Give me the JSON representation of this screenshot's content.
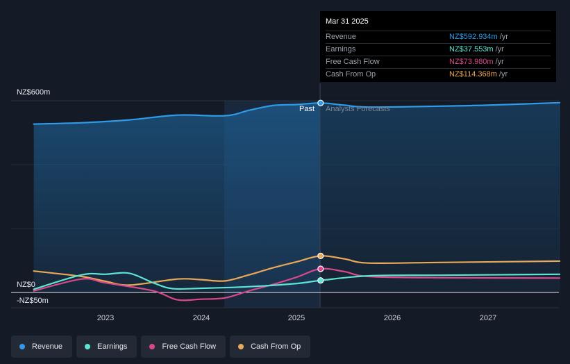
{
  "chart_data": {
    "type": "line",
    "currency": "NZ$",
    "y_tick_labels": [
      "NZ$600m",
      "NZ$0",
      "-NZ$50m"
    ],
    "ylim": [
      -50,
      600
    ],
    "x_tick_labels": [
      "2023",
      "2024",
      "2025",
      "2026",
      "2027"
    ],
    "past_label": "Past",
    "forecast_label": "Analysts Forecasts",
    "divider_date": 2025.25,
    "series": [
      {
        "name": "Revenue",
        "color": "#2f9be9",
        "points": [
          [
            2022.25,
            527
          ],
          [
            2022.75,
            531
          ],
          [
            2023.25,
            540
          ],
          [
            2023.75,
            555
          ],
          [
            2024.25,
            553
          ],
          [
            2024.5,
            570
          ],
          [
            2024.75,
            585
          ],
          [
            2025.0,
            588
          ],
          [
            2025.25,
            593
          ],
          [
            2025.5,
            586
          ],
          [
            2025.75,
            580
          ],
          [
            2026.5,
            583
          ],
          [
            2027.0,
            586
          ],
          [
            2027.75,
            594
          ]
        ]
      },
      {
        "name": "Earnings",
        "color": "#5ee4d4",
        "points": [
          [
            2022.25,
            10
          ],
          [
            2022.75,
            55
          ],
          [
            2023.0,
            57
          ],
          [
            2023.25,
            60
          ],
          [
            2023.5,
            30
          ],
          [
            2023.7,
            12
          ],
          [
            2024.0,
            13
          ],
          [
            2024.5,
            18
          ],
          [
            2025.0,
            28
          ],
          [
            2025.25,
            37.6
          ],
          [
            2025.75,
            52
          ],
          [
            2026.5,
            54
          ],
          [
            2027.75,
            57
          ]
        ]
      },
      {
        "name": "Free Cash Flow",
        "color": "#d9488b",
        "points": [
          [
            2022.25,
            5
          ],
          [
            2022.75,
            42
          ],
          [
            2023.0,
            30
          ],
          [
            2023.5,
            5
          ],
          [
            2023.75,
            -23
          ],
          [
            2024.0,
            -21
          ],
          [
            2024.25,
            -17
          ],
          [
            2024.5,
            5
          ],
          [
            2024.75,
            25
          ],
          [
            2025.0,
            48
          ],
          [
            2025.25,
            74
          ],
          [
            2025.5,
            65
          ],
          [
            2025.75,
            50
          ],
          [
            2026.5,
            46
          ],
          [
            2027.75,
            45
          ]
        ]
      },
      {
        "name": "Cash From Op",
        "color": "#e9a957",
        "points": [
          [
            2022.25,
            67
          ],
          [
            2022.75,
            50
          ],
          [
            2023.0,
            35
          ],
          [
            2023.25,
            23
          ],
          [
            2023.75,
            42
          ],
          [
            2024.0,
            40
          ],
          [
            2024.25,
            36
          ],
          [
            2024.5,
            55
          ],
          [
            2024.75,
            77
          ],
          [
            2025.0,
            96
          ],
          [
            2025.25,
            114.4
          ],
          [
            2025.5,
            105
          ],
          [
            2025.75,
            92
          ],
          [
            2026.5,
            94
          ],
          [
            2027.75,
            98
          ]
        ]
      }
    ]
  },
  "tooltip": {
    "date": "Mar 31 2025",
    "unit": "/yr",
    "rows": [
      {
        "label": "Revenue",
        "value": "NZ$592.934m",
        "color": "#2f9be9"
      },
      {
        "label": "Earnings",
        "value": "NZ$37.553m",
        "color": "#5ee4d4"
      },
      {
        "label": "Free Cash Flow",
        "value": "NZ$73.980m",
        "color": "#d9488b"
      },
      {
        "label": "Cash From Op",
        "value": "NZ$114.368m",
        "color": "#e9a957"
      }
    ]
  },
  "legend": [
    {
      "label": "Revenue",
      "color": "#2f9be9"
    },
    {
      "label": "Earnings",
      "color": "#5ee4d4"
    },
    {
      "label": "Free Cash Flow",
      "color": "#d9488b"
    },
    {
      "label": "Cash From Op",
      "color": "#e9a957"
    }
  ]
}
